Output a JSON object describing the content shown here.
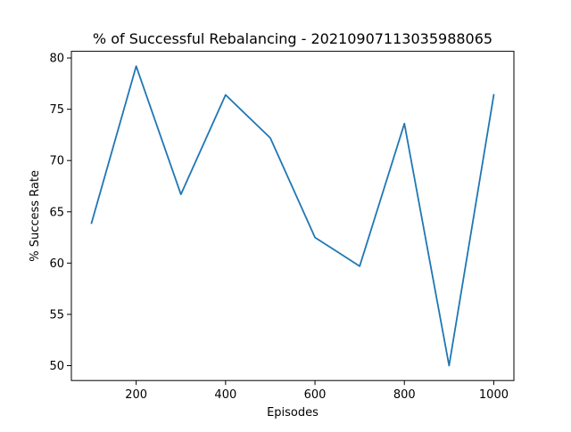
{
  "chart_data": {
    "type": "line",
    "title": "% of Successful Rebalancing - 20210907113035988065",
    "xlabel": "Episodes",
    "ylabel": "% Success Rate",
    "xlim": [
      55,
      1045
    ],
    "ylim": [
      48.55,
      80.65
    ],
    "xticks": [
      200,
      400,
      600,
      800,
      1000
    ],
    "yticks": [
      50,
      55,
      60,
      65,
      70,
      75,
      80
    ],
    "grid": false,
    "series": [
      {
        "color": "#1f77b4",
        "x": [
          100,
          200,
          300,
          400,
          500,
          600,
          700,
          800,
          900,
          1000
        ],
        "y": [
          63.9,
          79.2,
          66.7,
          76.4,
          72.2,
          62.5,
          59.7,
          73.6,
          50.0,
          76.4
        ]
      }
    ]
  }
}
